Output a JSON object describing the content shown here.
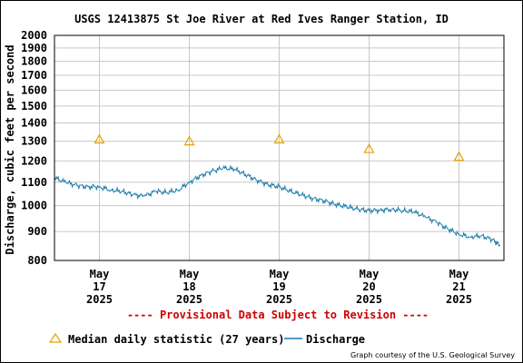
{
  "chart_data": {
    "type": "line",
    "title": "USGS 12413875 St Joe River at Red Ives Ranger Station, ID",
    "ylabel": "Discharge, cubic feet per second",
    "xlabel": "",
    "ylim": [
      800,
      2000
    ],
    "y_scale": "log",
    "grid": true,
    "y_ticks": [
      "2000",
      "1900",
      "1800",
      "1700",
      "1600",
      "1500",
      "1400",
      "1300",
      "1200",
      "1100",
      "1000",
      "900",
      "800"
    ],
    "x_range": [
      "2025-05-16 12:00",
      "2025-05-21 12:00"
    ],
    "x_ticks": [
      {
        "date": "2025-05-17",
        "lines": [
          "May",
          "17",
          "2025"
        ]
      },
      {
        "date": "2025-05-18",
        "lines": [
          "May",
          "18",
          "2025"
        ]
      },
      {
        "date": "2025-05-19",
        "lines": [
          "May",
          "19",
          "2025"
        ]
      },
      {
        "date": "2025-05-20",
        "lines": [
          "May",
          "20",
          "2025"
        ]
      },
      {
        "date": "2025-05-21",
        "lines": [
          "May",
          "21",
          "2025"
        ]
      }
    ],
    "series": [
      {
        "name": "Median daily statistic (27 years)",
        "kind": "marker-triangle",
        "color": "#e8a000",
        "points": [
          {
            "x": "2025-05-17",
            "y": 1310
          },
          {
            "x": "2025-05-18",
            "y": 1300
          },
          {
            "x": "2025-05-19",
            "y": 1310
          },
          {
            "x": "2025-05-20",
            "y": 1260
          },
          {
            "x": "2025-05-21",
            "y": 1220
          }
        ]
      },
      {
        "name": "Discharge",
        "kind": "line",
        "color": "#1a7aa8",
        "points": [
          {
            "x": "2025-05-16 12:00",
            "y": 1120
          },
          {
            "x": "2025-05-16 15:00",
            "y": 1100
          },
          {
            "x": "2025-05-16 18:00",
            "y": 1085
          },
          {
            "x": "2025-05-16 21:00",
            "y": 1080
          },
          {
            "x": "2025-05-17 00:00",
            "y": 1080
          },
          {
            "x": "2025-05-17 03:00",
            "y": 1065
          },
          {
            "x": "2025-05-17 06:00",
            "y": 1060
          },
          {
            "x": "2025-05-17 09:00",
            "y": 1045
          },
          {
            "x": "2025-05-17 12:00",
            "y": 1040
          },
          {
            "x": "2025-05-17 15:00",
            "y": 1060
          },
          {
            "x": "2025-05-17 18:00",
            "y": 1055
          },
          {
            "x": "2025-05-17 21:00",
            "y": 1065
          },
          {
            "x": "2025-05-18 00:00",
            "y": 1100
          },
          {
            "x": "2025-05-18 03:00",
            "y": 1130
          },
          {
            "x": "2025-05-18 06:00",
            "y": 1150
          },
          {
            "x": "2025-05-18 09:00",
            "y": 1165
          },
          {
            "x": "2025-05-18 12:00",
            "y": 1160
          },
          {
            "x": "2025-05-18 15:00",
            "y": 1135
          },
          {
            "x": "2025-05-18 18:00",
            "y": 1110
          },
          {
            "x": "2025-05-18 21:00",
            "y": 1090
          },
          {
            "x": "2025-05-19 00:00",
            "y": 1080
          },
          {
            "x": "2025-05-19 03:00",
            "y": 1060
          },
          {
            "x": "2025-05-19 06:00",
            "y": 1045
          },
          {
            "x": "2025-05-19 09:00",
            "y": 1030
          },
          {
            "x": "2025-05-19 12:00",
            "y": 1020
          },
          {
            "x": "2025-05-19 15:00",
            "y": 1005
          },
          {
            "x": "2025-05-19 18:00",
            "y": 995
          },
          {
            "x": "2025-05-19 21:00",
            "y": 985
          },
          {
            "x": "2025-05-20 00:00",
            "y": 980
          },
          {
            "x": "2025-05-20 03:00",
            "y": 982
          },
          {
            "x": "2025-05-20 06:00",
            "y": 985
          },
          {
            "x": "2025-05-20 09:00",
            "y": 980
          },
          {
            "x": "2025-05-20 12:00",
            "y": 975
          },
          {
            "x": "2025-05-20 15:00",
            "y": 955
          },
          {
            "x": "2025-05-20 18:00",
            "y": 935
          },
          {
            "x": "2025-05-20 21:00",
            "y": 910
          },
          {
            "x": "2025-05-21 00:00",
            "y": 890
          },
          {
            "x": "2025-05-21 03:00",
            "y": 880
          },
          {
            "x": "2025-05-21 06:00",
            "y": 885
          },
          {
            "x": "2025-05-21 09:00",
            "y": 870
          },
          {
            "x": "2025-05-21 11:00",
            "y": 850
          }
        ]
      }
    ]
  },
  "provisional_note": "---- Provisional Data Subject to Revision ----",
  "credit": "Graph courtesy of the U.S. Geological Survey",
  "colors": {
    "provisional": "#cc0000",
    "grid": "#c8c8c8",
    "median": "#e8a000",
    "discharge": "#1a7aa8"
  }
}
